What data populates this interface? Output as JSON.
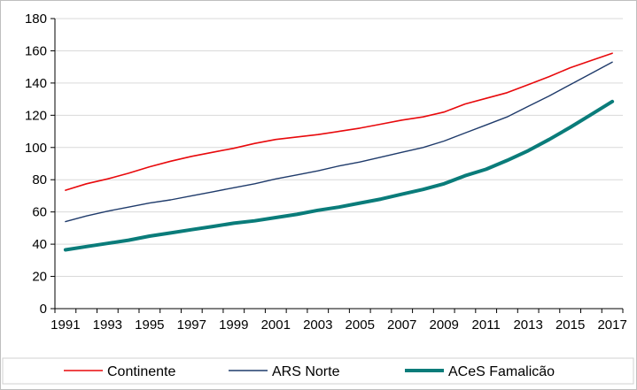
{
  "chart_data": {
    "type": "line",
    "title": "",
    "xlabel": "",
    "ylabel": "",
    "ylim": [
      0,
      180
    ],
    "yticks": [
      0,
      20,
      40,
      60,
      80,
      100,
      120,
      140,
      160,
      180
    ],
    "xticks": [
      1991,
      1993,
      1995,
      1997,
      1999,
      2001,
      2003,
      2005,
      2007,
      2009,
      2011,
      2013,
      2015,
      2017
    ],
    "x": [
      1991,
      1992,
      1993,
      1994,
      1995,
      1996,
      1997,
      1998,
      1999,
      2000,
      2001,
      2002,
      2003,
      2004,
      2005,
      2006,
      2007,
      2008,
      2009,
      2010,
      2011,
      2012,
      2013,
      2014,
      2015,
      2016,
      2017
    ],
    "grid": "horizontal",
    "legend_position": "bottom",
    "series": [
      {
        "name": "Continente",
        "color": "#e8090c",
        "width": 1.6,
        "values": [
          73.5,
          77.5,
          80.5,
          84,
          88,
          91.5,
          94.5,
          97,
          99.5,
          102.5,
          105,
          106.5,
          108,
          110,
          112,
          114.5,
          117,
          119,
          122,
          127,
          130.5,
          134,
          139,
          144,
          149.5,
          154,
          158.5
        ]
      },
      {
        "name": "ARS Norte",
        "color": "#1f3b6b",
        "width": 1.4,
        "values": [
          54,
          57.5,
          60.5,
          63,
          65.5,
          67.5,
          70,
          72.5,
          75,
          77.5,
          80.5,
          83,
          85.5,
          88.5,
          91,
          94,
          97,
          100,
          104,
          109,
          114,
          119,
          125.5,
          132,
          139,
          146,
          153
        ]
      },
      {
        "name": "ACeS Famalicão",
        "color": "#0a7c7a",
        "width": 4,
        "values": [
          36.5,
          38.5,
          40.5,
          42.5,
          45,
          47,
          49,
          51,
          53,
          54.5,
          56.5,
          58.5,
          61,
          63,
          65.5,
          68,
          71,
          74,
          77.5,
          82.5,
          86.5,
          92,
          98,
          105,
          112.5,
          120.5,
          128.5
        ]
      }
    ]
  }
}
